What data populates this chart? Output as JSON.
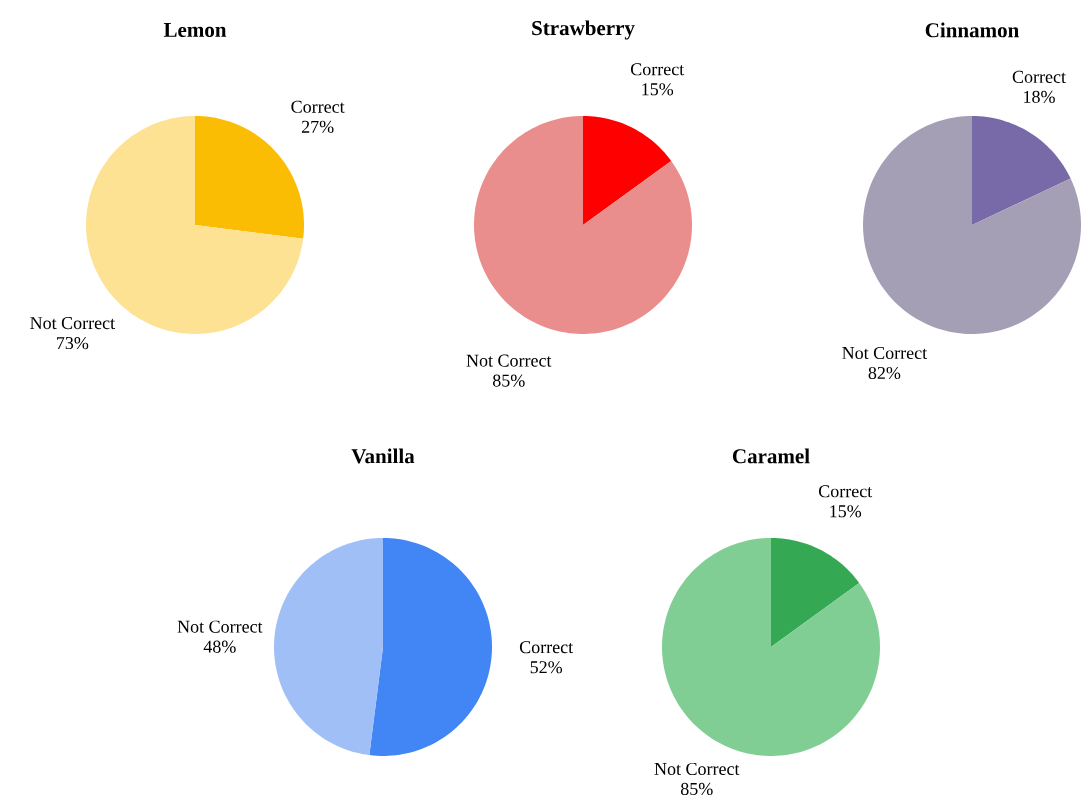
{
  "chart_data": [
    {
      "type": "pie",
      "title": "Lemon",
      "categories": [
        "Correct",
        "Not Correct"
      ],
      "values": [
        27,
        73
      ],
      "colors": [
        "#fbbc04",
        "#fde293"
      ],
      "value_labels": [
        "27%",
        "73%"
      ]
    },
    {
      "type": "pie",
      "title": "Strawberry",
      "categories": [
        "Correct",
        "Not Correct"
      ],
      "values": [
        15,
        85
      ],
      "colors": [
        "#ff0000",
        "#ea8e8d"
      ],
      "value_labels": [
        "15%",
        "85%"
      ]
    },
    {
      "type": "pie",
      "title": "Cinnamon",
      "categories": [
        "Correct",
        "Not Correct"
      ],
      "values": [
        18,
        82
      ],
      "colors": [
        "#7869a8",
        "#a59fb6"
      ],
      "value_labels": [
        "18%",
        "82%"
      ]
    },
    {
      "type": "pie",
      "title": "Vanilla",
      "categories": [
        "Correct",
        "Not Correct"
      ],
      "values": [
        52,
        48
      ],
      "colors": [
        "#4285f4",
        "#a1bff7"
      ],
      "value_labels": [
        "52%",
        "48%"
      ]
    },
    {
      "type": "pie",
      "title": "Caramel",
      "categories": [
        "Correct",
        "Not Correct"
      ],
      "values": [
        15,
        85
      ],
      "colors": [
        "#34a853",
        "#81ce94"
      ],
      "value_labels": [
        "15%",
        "85%"
      ]
    }
  ]
}
